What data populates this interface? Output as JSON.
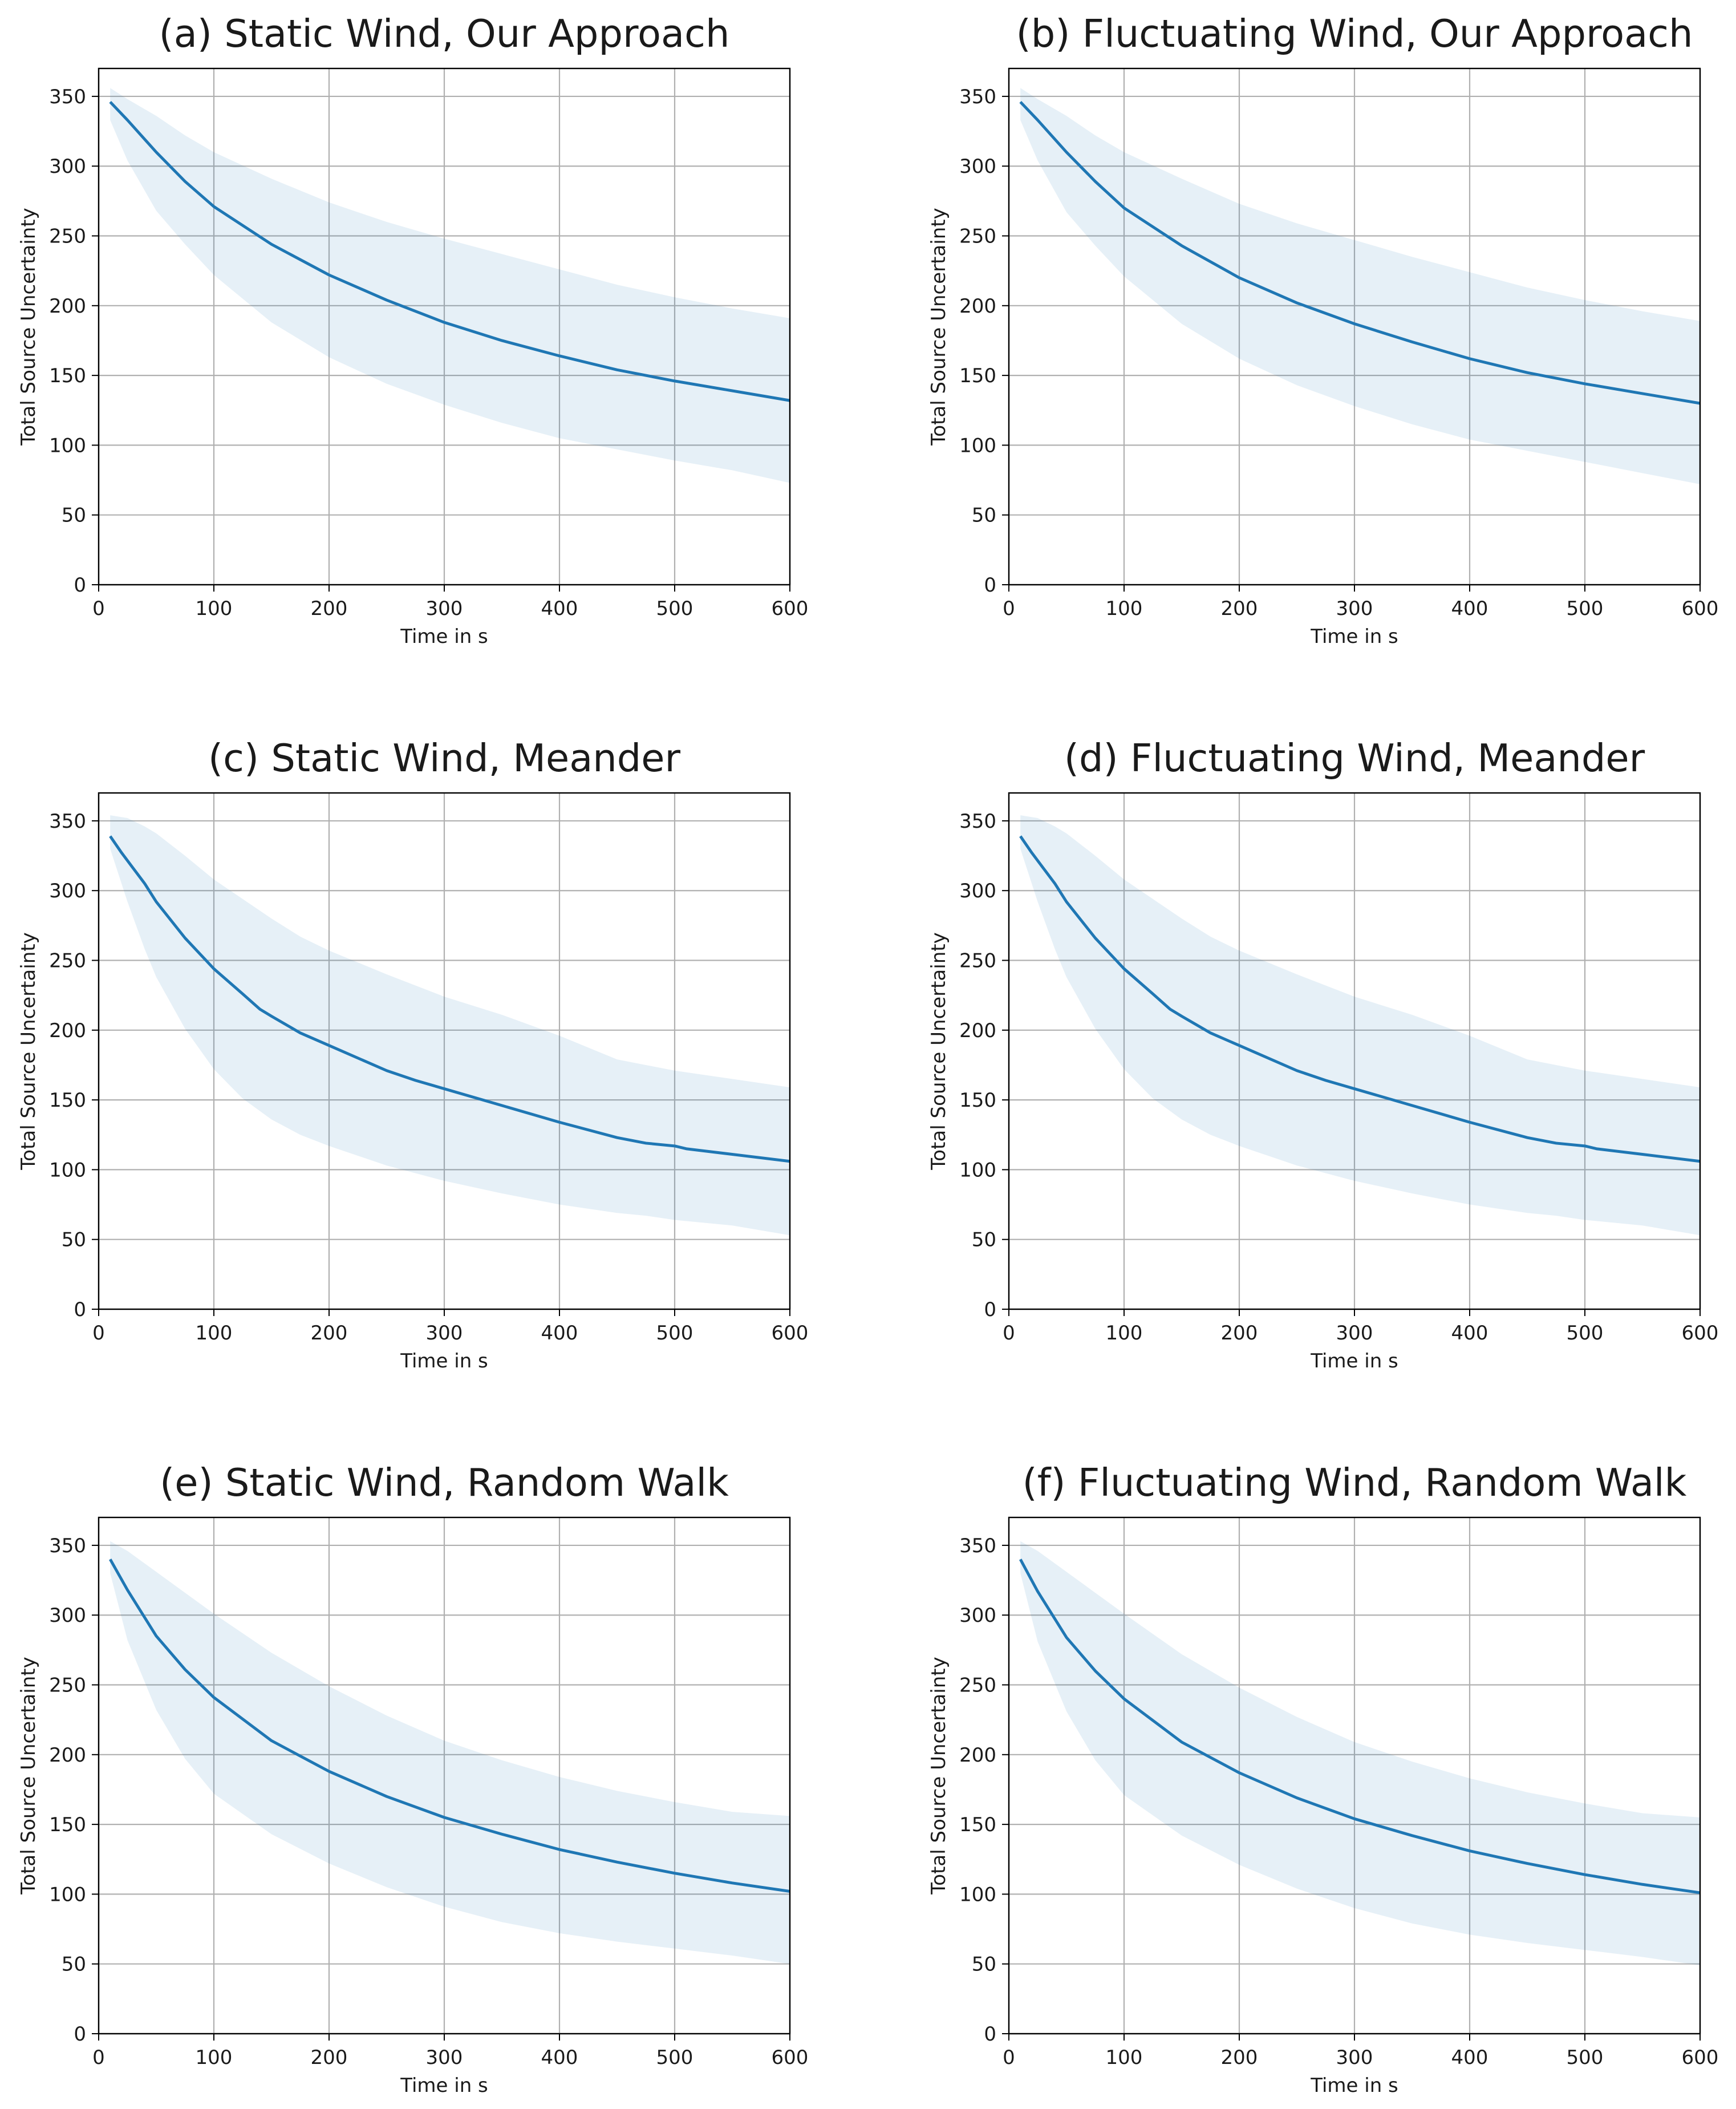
{
  "figure": {
    "grid": true,
    "line_color": "#1f77b4",
    "band_color": "#1f77b4",
    "grid_color": "#b0b0b0"
  },
  "chart_data": [
    {
      "id": "a",
      "type": "line",
      "title": "(a) Static Wind, Our Approach",
      "xlabel": "Time in s",
      "ylabel": "Total Source Uncertainty",
      "xlim": [
        0,
        600
      ],
      "ylim": [
        0,
        370
      ],
      "xticks": [
        0,
        100,
        200,
        300,
        400,
        500,
        600
      ],
      "yticks": [
        0,
        50,
        100,
        150,
        200,
        250,
        300,
        350
      ],
      "series": [
        {
          "name": "mean",
          "x": [
            10,
            25,
            50,
            75,
            100,
            150,
            200,
            250,
            300,
            350,
            400,
            450,
            500,
            550,
            600
          ],
          "y": [
            346,
            333,
            310,
            289,
            271,
            244,
            222,
            204,
            188,
            175,
            164,
            154,
            146,
            139,
            132
          ]
        },
        {
          "name": "spread",
          "kind": "band",
          "x": [
            10,
            25,
            50,
            75,
            100,
            150,
            200,
            250,
            300,
            350,
            400,
            450,
            500,
            550,
            600
          ],
          "upper": [
            356,
            348,
            336,
            322,
            310,
            291,
            274,
            260,
            248,
            237,
            226,
            215,
            206,
            198,
            191
          ],
          "lower": [
            333,
            304,
            268,
            244,
            222,
            188,
            163,
            144,
            129,
            116,
            105,
            97,
            89,
            82,
            73
          ]
        }
      ]
    },
    {
      "id": "b",
      "type": "line",
      "title": "(b) Fluctuating Wind, Our Approach",
      "xlabel": "Time in s",
      "ylabel": "Total Source Uncertainty",
      "xlim": [
        0,
        600
      ],
      "ylim": [
        0,
        370
      ],
      "xticks": [
        0,
        100,
        200,
        300,
        400,
        500,
        600
      ],
      "yticks": [
        0,
        50,
        100,
        150,
        200,
        250,
        300,
        350
      ],
      "series": [
        {
          "name": "mean",
          "x": [
            10,
            25,
            50,
            75,
            100,
            150,
            200,
            250,
            300,
            350,
            400,
            450,
            500,
            550,
            600
          ],
          "y": [
            346,
            333,
            310,
            289,
            270,
            243,
            220,
            202,
            187,
            174,
            162,
            152,
            144,
            137,
            130
          ]
        },
        {
          "name": "spread",
          "kind": "band",
          "x": [
            10,
            25,
            50,
            75,
            100,
            150,
            200,
            250,
            300,
            350,
            400,
            450,
            500,
            550,
            600
          ],
          "upper": [
            356,
            348,
            336,
            322,
            310,
            291,
            273,
            259,
            247,
            235,
            224,
            213,
            204,
            196,
            189
          ],
          "lower": [
            333,
            304,
            267,
            243,
            221,
            187,
            162,
            143,
            128,
            115,
            104,
            96,
            88,
            80,
            72
          ]
        }
      ]
    },
    {
      "id": "c",
      "type": "line",
      "title": "(c) Static Wind, Meander",
      "xlabel": "Time in s",
      "ylabel": "Total Source Uncertainty",
      "xlim": [
        0,
        600
      ],
      "ylim": [
        0,
        370
      ],
      "xticks": [
        0,
        100,
        200,
        300,
        400,
        500,
        600
      ],
      "yticks": [
        0,
        50,
        100,
        150,
        200,
        250,
        300,
        350
      ],
      "series": [
        {
          "name": "mean",
          "x": [
            10,
            20,
            30,
            40,
            50,
            75,
            100,
            125,
            140,
            150,
            175,
            200,
            250,
            275,
            300,
            350,
            400,
            450,
            475,
            500,
            510,
            550,
            600
          ],
          "y": [
            339,
            327,
            316,
            305,
            292,
            266,
            244,
            226,
            215,
            210,
            198,
            189,
            171,
            164,
            158,
            146,
            134,
            123,
            119,
            117,
            115,
            111,
            106
          ]
        },
        {
          "name": "spread",
          "kind": "band",
          "x": [
            10,
            25,
            40,
            50,
            75,
            100,
            125,
            150,
            175,
            200,
            250,
            300,
            350,
            400,
            450,
            475,
            500,
            550,
            600
          ],
          "upper": [
            354,
            352,
            346,
            341,
            325,
            308,
            294,
            280,
            267,
            257,
            240,
            224,
            211,
            196,
            179,
            175,
            171,
            165,
            159
          ],
          "lower": [
            330,
            292,
            258,
            238,
            201,
            172,
            151,
            136,
            125,
            117,
            103,
            92,
            83,
            75,
            69,
            67,
            64,
            60,
            53
          ]
        }
      ]
    },
    {
      "id": "d",
      "type": "line",
      "title": "(d) Fluctuating Wind, Meander",
      "xlabel": "Time in s",
      "ylabel": "Total Source Uncertainty",
      "xlim": [
        0,
        600
      ],
      "ylim": [
        0,
        370
      ],
      "xticks": [
        0,
        100,
        200,
        300,
        400,
        500,
        600
      ],
      "yticks": [
        0,
        50,
        100,
        150,
        200,
        250,
        300,
        350
      ],
      "series": [
        {
          "name": "mean",
          "x": [
            10,
            20,
            30,
            40,
            50,
            75,
            100,
            125,
            140,
            150,
            175,
            200,
            250,
            275,
            300,
            350,
            400,
            450,
            475,
            500,
            510,
            550,
            600
          ],
          "y": [
            339,
            327,
            316,
            305,
            292,
            266,
            244,
            226,
            215,
            210,
            198,
            189,
            171,
            164,
            158,
            146,
            134,
            123,
            119,
            117,
            115,
            111,
            106
          ]
        },
        {
          "name": "spread",
          "kind": "band",
          "x": [
            10,
            25,
            40,
            50,
            75,
            100,
            125,
            150,
            175,
            200,
            250,
            300,
            350,
            400,
            450,
            475,
            500,
            550,
            600
          ],
          "upper": [
            354,
            352,
            346,
            341,
            325,
            308,
            294,
            280,
            267,
            257,
            240,
            224,
            211,
            196,
            179,
            175,
            171,
            165,
            159
          ],
          "lower": [
            330,
            292,
            258,
            238,
            201,
            172,
            151,
            136,
            125,
            117,
            103,
            92,
            83,
            75,
            69,
            67,
            64,
            60,
            53
          ]
        }
      ]
    },
    {
      "id": "e",
      "type": "line",
      "title": "(e) Static Wind, Random Walk",
      "xlabel": "Time in s",
      "ylabel": "Total Source Uncertainty",
      "xlim": [
        0,
        600
      ],
      "ylim": [
        0,
        370
      ],
      "xticks": [
        0,
        100,
        200,
        300,
        400,
        500,
        600
      ],
      "yticks": [
        0,
        50,
        100,
        150,
        200,
        250,
        300,
        350
      ],
      "series": [
        {
          "name": "mean",
          "x": [
            10,
            25,
            50,
            75,
            100,
            150,
            200,
            250,
            300,
            350,
            400,
            450,
            500,
            550,
            600
          ],
          "y": [
            340,
            318,
            285,
            261,
            241,
            210,
            188,
            170,
            155,
            143,
            132,
            123,
            115,
            108,
            102
          ]
        },
        {
          "name": "spread",
          "kind": "band",
          "x": [
            10,
            25,
            50,
            75,
            100,
            150,
            200,
            250,
            300,
            350,
            400,
            450,
            500,
            550,
            600
          ],
          "upper": [
            353,
            346,
            331,
            316,
            301,
            273,
            249,
            228,
            210,
            196,
            184,
            174,
            166,
            159,
            156
          ],
          "lower": [
            330,
            282,
            232,
            197,
            172,
            143,
            122,
            105,
            91,
            80,
            72,
            66,
            61,
            56,
            50
          ]
        }
      ]
    },
    {
      "id": "f",
      "type": "line",
      "title": "(f) Fluctuating Wind, Random Walk",
      "xlabel": "Time in s",
      "ylabel": "Total Source Uncertainty",
      "xlim": [
        0,
        600
      ],
      "ylim": [
        0,
        370
      ],
      "xticks": [
        0,
        100,
        200,
        300,
        400,
        500,
        600
      ],
      "yticks": [
        0,
        50,
        100,
        150,
        200,
        250,
        300,
        350
      ],
      "series": [
        {
          "name": "mean",
          "x": [
            10,
            25,
            50,
            75,
            100,
            150,
            200,
            250,
            300,
            350,
            400,
            450,
            500,
            550,
            600
          ],
          "y": [
            340,
            317,
            284,
            260,
            240,
            209,
            187,
            169,
            154,
            142,
            131,
            122,
            114,
            107,
            101
          ]
        },
        {
          "name": "spread",
          "kind": "band",
          "x": [
            10,
            25,
            50,
            75,
            100,
            150,
            200,
            250,
            300,
            350,
            400,
            450,
            500,
            550,
            600
          ],
          "upper": [
            353,
            346,
            331,
            316,
            301,
            272,
            248,
            227,
            209,
            195,
            183,
            173,
            165,
            158,
            155
          ],
          "lower": [
            330,
            281,
            231,
            196,
            171,
            142,
            121,
            104,
            90,
            79,
            71,
            65,
            60,
            55,
            49
          ]
        }
      ]
    }
  ]
}
